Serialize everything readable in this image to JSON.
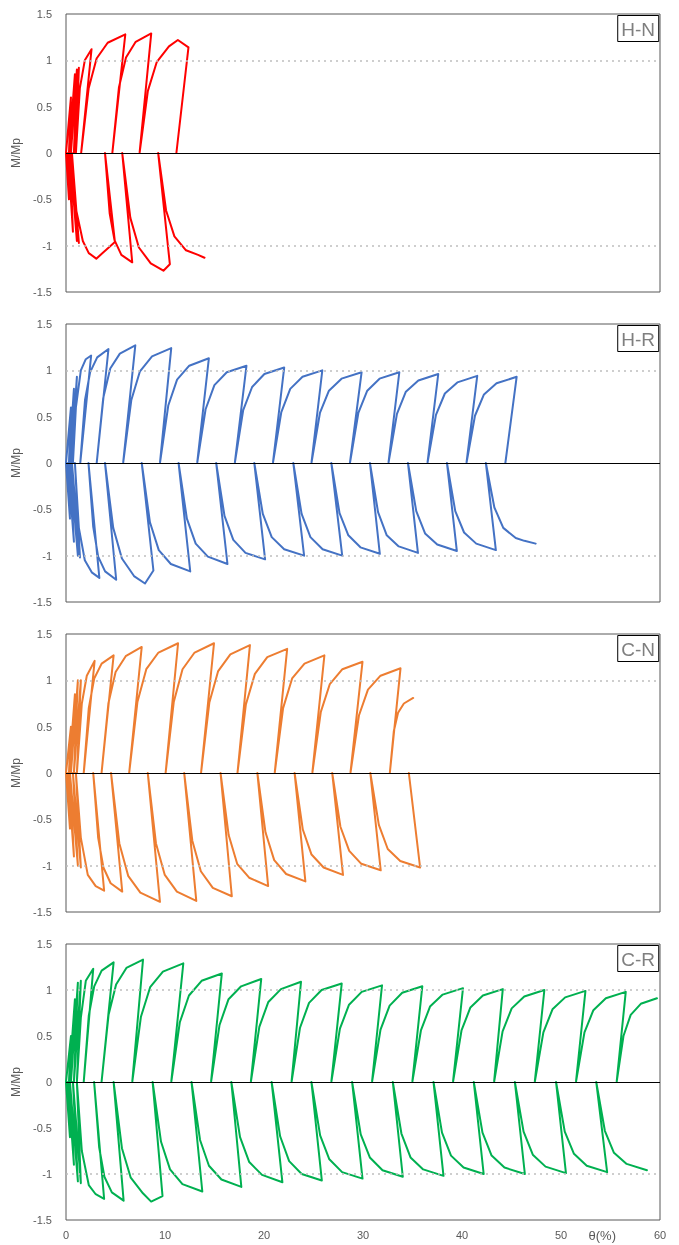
{
  "chart_data": [
    {
      "type": "line",
      "title": "H-N",
      "ylabel": "M/Mp",
      "xlim": [
        0,
        60
      ],
      "xticks": [
        0,
        10,
        20,
        30,
        40,
        50,
        60
      ],
      "ylim": [
        -1.5,
        1.5
      ],
      "yticks": [
        -1.5,
        -1,
        -0.5,
        0,
        0.5,
        1,
        1.5
      ],
      "tick_labels": "y",
      "marker": "none",
      "line_style": "solid",
      "ref_lines": [
        {
          "axis": "y",
          "value": 1,
          "color": "#bfbfbf",
          "line_style": "dotted"
        },
        {
          "axis": "y",
          "value": -1,
          "color": "#bfbfbf",
          "line_style": "dotted"
        },
        {
          "axis": "y",
          "value": 0,
          "color": "#000000",
          "line_style": "solid"
        }
      ],
      "series": [
        {
          "color": "#ff0000",
          "x": [
            13.99,
            13.34,
            12.12,
            10.95,
            10.11,
            9.31,
            10.49,
            9.84,
            8.56,
            7.36,
            6.5,
            5.68,
            6.69,
            5.59,
            4.9,
            4.41,
            3.94,
            4.94,
            3.06,
            2.3,
            1.7,
            1.0,
            0.5,
            1.3,
            0.6,
            1.1,
            0.4,
            0.7,
            0.2,
            0.3,
            0,
            0.5,
            0.3,
            0.9,
            0.5,
            1.1,
            0.8,
            1.3,
            1.0,
            1.4,
            1.9,
            2.58,
            1.53,
            2.29,
            3.09,
            4.21,
            5.99,
            4.68,
            5.35,
            6.06,
            7.04,
            8.61,
            7.43,
            8.27,
            9.16,
            10.4,
            11.3,
            12.37,
            11.15
          ],
          "values": [
            -1.13,
            -1.1,
            -1.05,
            -0.9,
            -0.62,
            0,
            -1.2,
            -1.27,
            -1.19,
            -1.02,
            -0.7,
            0,
            -1.18,
            -1.1,
            -0.94,
            -0.65,
            0,
            -0.96,
            -1.14,
            -1.08,
            -0.95,
            -0.6,
            0,
            -0.97,
            0,
            -0.95,
            0,
            -0.85,
            0,
            -0.5,
            0,
            0.6,
            0,
            0.85,
            0,
            0.9,
            0,
            0.92,
            0,
            0.7,
            1.0,
            1.12,
            0,
            0.7,
            1.02,
            1.19,
            1.28,
            0,
            0.71,
            1.03,
            1.2,
            1.29,
            0,
            0.67,
            0.98,
            1.15,
            1.22,
            1.14,
            0
          ]
        }
      ]
    },
    {
      "type": "line",
      "title": "H-R",
      "ylabel": "M/Mp",
      "xlim": [
        0,
        60
      ],
      "xticks": [
        0,
        10,
        20,
        30,
        40,
        50,
        60
      ],
      "ylim": [
        -1.5,
        1.5
      ],
      "yticks": [
        -1.5,
        -1,
        -0.5,
        0,
        0.5,
        1,
        1.5
      ],
      "tick_labels": "y",
      "marker": "none",
      "line_style": "solid",
      "ref_lines": [
        {
          "axis": "y",
          "value": 1,
          "color": "#bfbfbf",
          "line_style": "dotted"
        },
        {
          "axis": "y",
          "value": -1,
          "color": "#bfbfbf",
          "line_style": "dotted"
        },
        {
          "axis": "y",
          "value": 0,
          "color": "#000000",
          "line_style": "solid"
        }
      ],
      "series": [
        {
          "color": "#4472c4",
          "x": [
            47.44,
            46.3,
            45.43,
            44.17,
            43.27,
            42.41,
            43.42,
            41.44,
            40.21,
            39.32,
            38.48,
            39.48,
            37.5,
            36.27,
            35.38,
            34.54,
            35.55,
            33.61,
            32.4,
            31.52,
            30.7,
            31.7,
            29.74,
            28.52,
            27.63,
            26.8,
            27.9,
            25.92,
            24.69,
            23.8,
            22.96,
            24.05,
            22.04,
            20.78,
            19.88,
            19.02,
            20.11,
            18.13,
            16.9,
            16.01,
            15.17,
            16.31,
            14.33,
            13.1,
            12.21,
            11.37,
            12.55,
            10.59,
            9.37,
            8.48,
            7.65,
            8.83,
            7.98,
            6.87,
            5.65,
            4.77,
            3.94,
            5.07,
            3.95,
            3.25,
            2.75,
            2.27,
            3.37,
            2.6,
            1.9,
            1.3,
            0.9,
            1.41,
            0.6,
            1.2,
            0.4,
            0.8,
            0.2,
            0.4,
            0,
            0.5,
            0.3,
            0.8,
            0.5,
            1.1,
            0.7,
            1.0,
            1.5,
            2.0,
            2.54,
            1.44,
            1.92,
            2.44,
            3.15,
            4.29,
            3.1,
            3.76,
            4.47,
            5.44,
            7.0,
            5.77,
            6.6,
            7.47,
            8.69,
            10.63,
            9.49,
            10.33,
            11.22,
            12.45,
            14.43,
            13.25,
            14.1,
            14.99,
            16.24,
            18.23,
            17.05,
            17.9,
            18.8,
            20.04,
            22.04,
            20.9,
            21.75,
            22.65,
            23.89,
            25.89,
            24.79,
            25.65,
            26.56,
            27.83,
            29.86,
            28.68,
            29.53,
            30.43,
            31.67,
            33.67,
            32.57,
            33.43,
            34.33,
            35.59,
            37.6,
            36.51,
            37.37,
            38.27,
            39.53,
            41.54,
            40.45,
            41.31,
            42.22,
            43.49,
            45.52,
            44.38
          ],
          "values": [
            -0.87,
            -0.84,
            -0.81,
            -0.7,
            -0.48,
            0,
            -0.94,
            -0.87,
            -0.75,
            -0.52,
            0,
            -0.95,
            -0.88,
            -0.76,
            -0.52,
            0,
            -0.97,
            -0.9,
            -0.78,
            -0.53,
            0,
            -0.98,
            -0.91,
            -0.78,
            -0.54,
            0,
            -1.0,
            -0.93,
            -0.8,
            -0.55,
            0,
            -1.0,
            -0.93,
            -0.8,
            -0.55,
            0,
            -1.04,
            -0.97,
            -0.83,
            -0.57,
            0,
            -1.09,
            -1.01,
            -0.87,
            -0.6,
            0,
            -1.17,
            -1.09,
            -0.94,
            -0.64,
            0,
            -1.16,
            -1.3,
            -1.22,
            -1.03,
            -0.7,
            0,
            -1.26,
            -1.17,
            -1.01,
            -0.69,
            0,
            -1.24,
            -1.18,
            -1.05,
            -0.7,
            0,
            -1.02,
            0,
            -1.0,
            0,
            -0.85,
            0,
            -0.6,
            0,
            0.6,
            0,
            0.8,
            0,
            0.93,
            0,
            0.6,
            1.0,
            1.12,
            1.16,
            0,
            0.68,
            0.98,
            1.14,
            1.23,
            0,
            0.7,
            1.02,
            1.18,
            1.27,
            0,
            0.68,
            0.99,
            1.15,
            1.24,
            0,
            0.62,
            0.9,
            1.05,
            1.13,
            0,
            0.58,
            0.84,
            0.98,
            1.05,
            0,
            0.57,
            0.82,
            0.96,
            1.03,
            0,
            0.55,
            0.8,
            0.93,
            1.0,
            0,
            0.54,
            0.78,
            0.91,
            0.98,
            0,
            0.54,
            0.78,
            0.91,
            0.98,
            0,
            0.53,
            0.77,
            0.89,
            0.96,
            0,
            0.52,
            0.75,
            0.87,
            0.94,
            0,
            0.51,
            0.74,
            0.86,
            0.93,
            0
          ]
        }
      ]
    },
    {
      "type": "line",
      "title": "C-N",
      "ylabel": "M/Mp",
      "xlim": [
        0,
        60
      ],
      "xticks": [
        0,
        10,
        20,
        30,
        40,
        50,
        60
      ],
      "ylim": [
        -1.5,
        1.5
      ],
      "yticks": [
        -1.5,
        -1,
        -0.5,
        0,
        0.5,
        1,
        1.5
      ],
      "tick_labels": "y",
      "marker": "none",
      "line_style": "solid",
      "ref_lines": [
        {
          "axis": "y",
          "value": 1,
          "color": "#bfbfbf",
          "line_style": "dotted"
        },
        {
          "axis": "y",
          "value": -1,
          "color": "#bfbfbf",
          "line_style": "dotted"
        },
        {
          "axis": "y",
          "value": 0,
          "color": "#000000",
          "line_style": "solid"
        }
      ],
      "series": [
        {
          "color": "#ed7d31",
          "x": [
            34.63,
            35.77,
            33.76,
            32.5,
            31.6,
            30.74,
            31.79,
            29.83,
            28.61,
            27.72,
            26.89,
            27.98,
            26.02,
            24.8,
            23.92,
            23.09,
            24.18,
            22.24,
            21.03,
            20.15,
            19.33,
            20.42,
            18.5,
            17.29,
            16.43,
            15.61,
            16.75,
            14.83,
            13.62,
            12.76,
            11.94,
            13.16,
            11.2,
            9.98,
            9.09,
            8.26,
            9.49,
            7.51,
            6.28,
            5.39,
            4.55,
            5.68,
            4.51,
            3.78,
            3.25,
            2.75,
            3.85,
            3.0,
            2.2,
            1.5,
            1.0,
            1.5,
            0.7,
            1.2,
            0.4,
            0.8,
            0.2,
            0.4,
            0,
            0.5,
            0.3,
            0.9,
            0.5,
            1.2,
            0.8,
            1.5,
            1.1,
            1.6,
            2.1,
            2.89,
            1.79,
            2.3,
            2.85,
            3.6,
            4.81,
            3.59,
            4.28,
            5.01,
            6.03,
            7.65,
            6.38,
            7.22,
            8.11,
            9.34,
            11.32,
            10.06,
            10.89,
            11.77,
            12.99,
            14.95,
            13.64,
            14.48,
            15.37,
            16.6,
            18.58,
            17.32,
            18.17,
            19.08,
            20.33,
            22.34,
            21.08,
            21.93,
            22.84,
            24.09,
            26.1,
            24.88,
            25.74,
            26.65,
            27.92,
            29.95,
            28.73,
            29.59,
            30.5,
            31.77,
            33.79,
            32.71,
            33.11,
            33.54,
            34.13,
            35.07
          ],
          "values": [
            0,
            -1.02,
            -0.95,
            -0.82,
            -0.56,
            0,
            -1.05,
            -0.98,
            -0.84,
            -0.58,
            0,
            -1.1,
            -1.02,
            -0.88,
            -0.61,
            0,
            -1.17,
            -1.09,
            -0.94,
            -0.64,
            0,
            -1.22,
            -1.13,
            -0.98,
            -0.67,
            0,
            -1.33,
            -1.24,
            -1.06,
            -0.73,
            0,
            -1.38,
            -1.28,
            -1.1,
            -0.76,
            0,
            -1.39,
            -1.29,
            -1.11,
            -0.76,
            0,
            -1.28,
            -1.19,
            -1.02,
            -0.7,
            0,
            -1.27,
            -1.22,
            -1.1,
            -0.7,
            0,
            -1.02,
            0,
            -1.0,
            0,
            -0.9,
            0,
            -0.6,
            0,
            0.5,
            0,
            0.85,
            0,
            1.0,
            0,
            1.0,
            0,
            0.75,
            1.05,
            1.21,
            0,
            0.7,
            1.02,
            1.18,
            1.27,
            0,
            0.75,
            1.09,
            1.26,
            1.36,
            0,
            0.77,
            1.12,
            1.3,
            1.4,
            0,
            0.77,
            1.12,
            1.3,
            1.4,
            0,
            0.76,
            1.1,
            1.28,
            1.38,
            0,
            0.74,
            1.07,
            1.25,
            1.34,
            0,
            0.7,
            1.02,
            1.18,
            1.27,
            0,
            0.66,
            0.96,
            1.12,
            1.2,
            0,
            0.62,
            0.9,
            1.05,
            1.13,
            0,
            0.45,
            0.65,
            0.75,
            0.81
          ]
        }
      ]
    },
    {
      "type": "line",
      "title": "C-R",
      "xlabel": "θ(%)",
      "ylabel": "M/Mp",
      "xlim": [
        0,
        60
      ],
      "xticks": [
        0,
        10,
        20,
        30,
        40,
        50,
        60
      ],
      "ylim": [
        -1.5,
        1.5
      ],
      "yticks": [
        -1.5,
        -1,
        -0.5,
        0,
        0.5,
        1,
        1.5
      ],
      "marker": "none",
      "line_style": "solid",
      "ref_lines": [
        {
          "axis": "y",
          "value": 1,
          "color": "#bfbfbf",
          "line_style": "dotted"
        },
        {
          "axis": "y",
          "value": -1,
          "color": "#bfbfbf",
          "line_style": "dotted"
        },
        {
          "axis": "y",
          "value": 0,
          "color": "#000000",
          "line_style": "solid"
        }
      ],
      "series": [
        {
          "color": "#00b050",
          "x": [
            58.68,
            56.63,
            55.35,
            54.43,
            53.56,
            54.66,
            52.6,
            51.31,
            50.38,
            49.5,
            50.5,
            48.44,
            47.15,
            46.22,
            45.34,
            46.35,
            44.29,
            42.99,
            42.07,
            41.19,
            42.19,
            40.16,
            38.89,
            37.98,
            37.12,
            38.13,
            36.08,
            34.8,
            33.88,
            33.01,
            34.02,
            31.97,
            30.69,
            29.77,
            28.9,
            29.95,
            27.89,
            26.6,
            25.67,
            24.79,
            25.84,
            23.81,
            22.54,
            21.63,
            20.77,
            21.86,
            19.8,
            18.51,
            17.58,
            16.7,
            17.71,
            15.7,
            14.44,
            13.54,
            12.68,
            13.77,
            11.76,
            10.51,
            9.6,
            8.75,
            9.75,
            8.6,
            7.77,
            6.54,
            5.65,
            4.81,
            5.82,
            4.63,
            3.88,
            3.35,
            2.84,
            3.85,
            3.0,
            2.3,
            1.6,
            1.1,
            1.5,
            0.7,
            1.2,
            0.4,
            0.8,
            0.2,
            0.4,
            0,
            0.5,
            0.3,
            0.9,
            0.5,
            1.2,
            0.8,
            1.5,
            1.1,
            1.5,
            2.0,
            2.75,
            1.79,
            2.3,
            2.85,
            3.6,
            4.81,
            3.59,
            4.3,
            5.06,
            6.1,
            7.78,
            6.69,
            7.57,
            8.5,
            9.79,
            11.85,
            10.63,
            11.5,
            12.42,
            13.7,
            15.74,
            14.65,
            15.51,
            16.42,
            17.69,
            19.72,
            18.67,
            19.53,
            20.44,
            21.71,
            23.74,
            22.78,
            23.64,
            24.55,
            25.82,
            27.85,
            26.8,
            27.67,
            28.59,
            29.87,
            31.92,
            30.91,
            31.77,
            32.69,
            33.96,
            35.99,
            34.98,
            35.85,
            36.77,
            38.05,
            40.1,
            39.09,
            39.95,
            40.85,
            42.11,
            44.12,
            43.24,
            44.1,
            45.02,
            46.29,
            48.32,
            47.35,
            48.22,
            49.14,
            50.42,
            52.47,
            51.51,
            52.37,
            53.27,
            54.53,
            56.54,
            55.62,
            56.31,
            57.04,
            58.06,
            59.69
          ],
          "values": [
            -0.96,
            -0.89,
            -0.77,
            -0.53,
            0,
            -0.98,
            -0.91,
            -0.78,
            -0.54,
            0,
            -0.99,
            -0.92,
            -0.79,
            -0.54,
            0,
            -1.0,
            -0.93,
            -0.8,
            -0.55,
            0,
            -1.0,
            -0.93,
            -0.8,
            -0.55,
            0,
            -1.02,
            -0.95,
            -0.82,
            -0.56,
            0,
            -1.03,
            -0.96,
            -0.82,
            -0.57,
            0,
            -1.05,
            -0.98,
            -0.84,
            -0.58,
            0,
            -1.07,
            -1.0,
            -0.86,
            -0.59,
            0,
            -1.09,
            -1.01,
            -0.87,
            -0.6,
            0,
            -1.14,
            -1.06,
            -0.91,
            -0.63,
            0,
            -1.19,
            -1.11,
            -0.95,
            -0.65,
            0,
            -1.24,
            -1.3,
            -1.21,
            -1.04,
            -0.72,
            0,
            -1.29,
            -1.2,
            -1.03,
            -0.71,
            0,
            -1.27,
            -1.22,
            -1.12,
            -0.75,
            0,
            -1.1,
            0,
            -1.08,
            0,
            -0.9,
            0,
            -0.6,
            0,
            0.5,
            0,
            0.9,
            0,
            1.08,
            0,
            1.1,
            0,
            0.7,
            1.1,
            1.23,
            0,
            0.72,
            1.04,
            1.21,
            1.3,
            0,
            0.73,
            1.06,
            1.24,
            1.33,
            0,
            0.71,
            1.03,
            1.2,
            1.29,
            0,
            0.65,
            0.94,
            1.1,
            1.18,
            0,
            0.62,
            0.9,
            1.04,
            1.12,
            0,
            0.6,
            0.87,
            1.01,
            1.09,
            0,
            0.59,
            0.86,
            1.0,
            1.07,
            0,
            0.58,
            0.84,
            0.98,
            1.05,
            0,
            0.57,
            0.83,
            0.97,
            1.04,
            0,
            0.56,
            0.82,
            0.95,
            1.02,
            0,
            0.56,
            0.81,
            0.94,
            1.01,
            0,
            0.55,
            0.8,
            0.93,
            1.0,
            0,
            0.54,
            0.79,
            0.92,
            0.99,
            0,
            0.54,
            0.78,
            0.91,
            0.98,
            0,
            0.5,
            0.73,
            0.85,
            0.91
          ]
        }
      ]
    }
  ]
}
